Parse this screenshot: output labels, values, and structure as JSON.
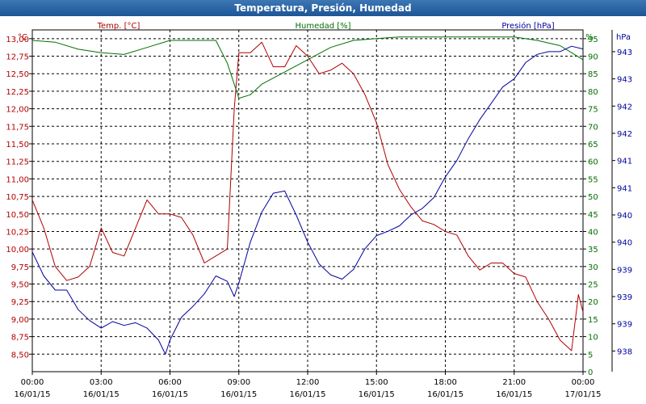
{
  "chart_data": {
    "type": "line",
    "title": "Temperatura, Presión, Humedad",
    "colors": {
      "temp": "#b00000",
      "humidity": "#007000",
      "pressure": "#0000a0",
      "grid": "#000000",
      "title_bg": "#2a64a6"
    },
    "grid": true,
    "x": {
      "ticks": [
        {
          "time": "00:00",
          "date": "16/01/15"
        },
        {
          "time": "03:00",
          "date": "16/01/15"
        },
        {
          "time": "06:00",
          "date": "16/01/15"
        },
        {
          "time": "09:00",
          "date": "16/01/15"
        },
        {
          "time": "12:00",
          "date": "16/01/15"
        },
        {
          "time": "15:00",
          "date": "16/01/15"
        },
        {
          "time": "18:00",
          "date": "16/01/15"
        },
        {
          "time": "21:00",
          "date": "16/01/15"
        },
        {
          "time": "00:00",
          "date": "17/01/15"
        }
      ],
      "range_hours": [
        0,
        24
      ]
    },
    "left_axis": {
      "unit": "°C",
      "label": "Temp. [°C]",
      "ticks": [
        "8,50",
        "8,75",
        "9,00",
        "9,25",
        "9,50",
        "9,75",
        "10,00",
        "10,25",
        "10,50",
        "10,75",
        "11,00",
        "11,25",
        "11,50",
        "11,75",
        "12,00",
        "12,25",
        "12,50",
        "12,75",
        "13,00"
      ],
      "range": [
        8.25,
        13.125
      ]
    },
    "humidity_axis": {
      "unit": "%",
      "label": "Humedad [%]",
      "ticks": [
        "0",
        "5",
        "10",
        "15",
        "20",
        "25",
        "30",
        "35",
        "40",
        "45",
        "50",
        "55",
        "60",
        "65",
        "70",
        "75",
        "80",
        "85",
        "90",
        "95"
      ],
      "range": [
        0,
        97.5
      ]
    },
    "pressure_axis": {
      "unit": "hPa",
      "label": "Presión [hPa]",
      "ticks": [
        "938",
        "939",
        "939",
        "939",
        "940",
        "940",
        "941",
        "941",
        "942",
        "942",
        "943",
        "943"
      ]
    },
    "series": [
      {
        "name": "Temp. [°C]",
        "key": "temp",
        "axis": "left",
        "x": [
          0,
          0.5,
          1,
          1.5,
          2,
          2.5,
          3,
          3.5,
          4,
          4.5,
          5,
          5.5,
          6,
          6.5,
          7,
          7.5,
          8,
          8.5,
          8.8,
          9,
          9.5,
          10,
          10.5,
          11,
          11.5,
          12,
          12.5,
          13,
          13.5,
          14,
          14.5,
          15,
          15.5,
          16,
          16.5,
          17,
          17.5,
          18,
          18.5,
          19,
          19.5,
          20,
          20.5,
          21,
          21.5,
          22,
          22.5,
          23,
          23.5,
          23.8,
          24
        ],
        "values": [
          10.7,
          10.3,
          9.75,
          9.55,
          9.6,
          9.75,
          10.3,
          9.95,
          9.9,
          10.3,
          10.7,
          10.5,
          10.5,
          10.45,
          10.2,
          9.8,
          9.9,
          10.0,
          12.0,
          12.8,
          12.8,
          12.95,
          12.6,
          12.6,
          12.9,
          12.75,
          12.5,
          12.55,
          12.65,
          12.5,
          12.2,
          11.8,
          11.2,
          10.85,
          10.6,
          10.4,
          10.35,
          10.25,
          10.2,
          9.9,
          9.7,
          9.8,
          9.8,
          9.65,
          9.6,
          9.25,
          9.0,
          8.7,
          8.55,
          9.35,
          9.1
        ]
      },
      {
        "name": "Humedad [%]",
        "key": "humidity",
        "axis": "humidity",
        "x": [
          0,
          1,
          2,
          3,
          4,
          5,
          6,
          7,
          8,
          8.5,
          9,
          9.5,
          10,
          11,
          12,
          13,
          14,
          15,
          16,
          17,
          18,
          19,
          20,
          21,
          22,
          23,
          23.5,
          24
        ],
        "values": [
          94.5,
          94,
          92,
          91,
          90.5,
          92.5,
          94.5,
          94.5,
          94.5,
          88,
          78,
          79,
          82,
          85.5,
          89,
          92.5,
          94.5,
          95,
          95.5,
          95.5,
          95.5,
          95.5,
          95.5,
          95.5,
          94.5,
          93,
          91,
          89
        ]
      },
      {
        "name": "Presión [hPa]",
        "key": "pressure",
        "axis": "pressure",
        "x": [
          0,
          0.5,
          1,
          1.5,
          2,
          2.5,
          3,
          3.5,
          4,
          4.5,
          5,
          5.5,
          5.8,
          6,
          6.5,
          7,
          7.5,
          8,
          8.5,
          8.8,
          9,
          9.5,
          10,
          10.5,
          11,
          11.5,
          12,
          12.5,
          13,
          13.5,
          14,
          14.5,
          15,
          15.5,
          16,
          16.5,
          17,
          17.5,
          18,
          18.5,
          19,
          19.5,
          20,
          20.5,
          21,
          21.5,
          22,
          22.5,
          23,
          23.5,
          24
        ],
        "values": [
          939.82,
          939.38,
          939.12,
          939.12,
          938.76,
          938.56,
          938.42,
          938.54,
          938.47,
          938.52,
          938.42,
          938.2,
          937.94,
          938.2,
          938.62,
          938.82,
          939.05,
          939.38,
          939.28,
          939.0,
          939.25,
          940.0,
          940.55,
          940.9,
          940.94,
          940.5,
          940.0,
          939.6,
          939.4,
          939.32,
          939.5,
          939.88,
          940.12,
          940.2,
          940.3,
          940.5,
          940.62,
          940.82,
          941.2,
          941.5,
          941.9,
          942.25,
          942.55,
          942.85,
          943.0,
          943.3,
          943.45,
          943.5,
          943.5,
          943.6,
          943.55
        ]
      }
    ]
  }
}
